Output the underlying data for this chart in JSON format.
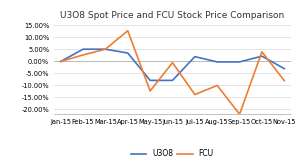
{
  "title": "U3O8 Spot Price and FCU Stock Price Comparison",
  "categories": [
    "Jan-15",
    "Feb-15",
    "Mar-15",
    "Apr-15",
    "May-15",
    "Jun-15",
    "Jul-15",
    "Aug-15",
    "Sep-15",
    "Oct-15",
    "Nov-15"
  ],
  "u308_vals": [
    0.0,
    0.051,
    0.051,
    0.035,
    -0.079,
    -0.079,
    0.02,
    -0.002,
    -0.002,
    0.022,
    -0.03
  ],
  "fcu_vals": [
    0.0,
    0.027,
    0.051,
    0.128,
    -0.123,
    -0.005,
    -0.138,
    -0.1,
    -0.22,
    0.04,
    -0.08
  ],
  "u308_color": "#4472c4",
  "fcu_color": "#ed7d31",
  "ylim": [
    -0.22,
    0.165
  ],
  "yticks": [
    -0.2,
    -0.15,
    -0.1,
    -0.05,
    0.0,
    0.05,
    0.1,
    0.15
  ],
  "background_color": "#ffffff",
  "plot_bg_color": "#ffffff",
  "grid_color": "#d9d9d9",
  "title_fontsize": 6.5,
  "legend_fontsize": 5.5,
  "tick_fontsize": 4.8,
  "linewidth": 1.2
}
